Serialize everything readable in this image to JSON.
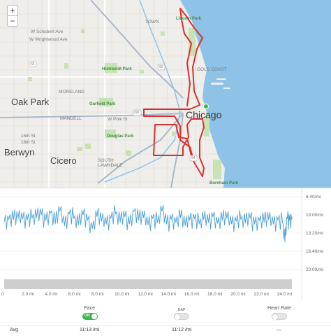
{
  "map": {
    "zoom_in": "+",
    "zoom_out": "−",
    "labels": {
      "oak_park": "Oak Park",
      "berwyn": "Berwyn",
      "cicero": "Cicero",
      "chicago": "Chicago",
      "lincoln_park": "Lincoln Park",
      "humboldt_park": "Humboldt Park",
      "garfield_park": "Garfield Park",
      "douglas_park": "Douglas Park",
      "burnham_park": "Burnham Park",
      "w_schubert": "W Schubert Ave",
      "w_wrightwood": "W Wrightwood Ave",
      "w_polk": "W Polk St",
      "st15": "15th St",
      "st18": "18th St",
      "moreland": "MORELAND",
      "mandell": "MANDELL",
      "south_lawndale": "SOUTH\nLAWNDALE",
      "gold_coast": "GOLD COAST",
      "town": "TOWN",
      "hwy_64": "64",
      "hwy_90": "90",
      "hwy_290": "290",
      "hwy_94": "94"
    },
    "colors": {
      "water": "#8ec2e6",
      "route": "#d9302f",
      "park": "#c7e3b4",
      "land": "#efeeeb"
    }
  },
  "chart_data": {
    "type": "line",
    "title": "",
    "xlabel": "",
    "ylabel": "",
    "x_unit": "mi",
    "xlim": [
      0,
      24.8
    ],
    "ylim_seconds_per_mile": [
      400,
      1400
    ],
    "x_ticks": [
      "0",
      "2.0 mi",
      "4.0 mi",
      "6.0 mi",
      "8.0 mi",
      "10.0 mi",
      "12.0 mi",
      "14.0 mi",
      "16.0 mi",
      "18.0 mi",
      "20.0 mi",
      "22.0 mi",
      "24.0 mi"
    ],
    "y_ticks": [
      "6:40/mi",
      "10:00/mi",
      "13:20/mi",
      "16:40/mi",
      "20:00/mi"
    ],
    "series": [
      {
        "color": "#4a9fd8",
        "x": [
          0,
          0.4,
          0.8,
          1.2,
          1.6,
          2.0,
          2.4,
          2.8,
          3.2,
          3.6,
          4.0,
          4.4,
          4.8,
          5.2,
          5.6,
          6.0,
          6.4,
          6.8,
          7.2,
          7.6,
          8.0,
          8.4,
          8.8,
          9.2,
          9.6,
          10.0,
          10.4,
          10.8,
          11.2,
          11.6,
          12.0,
          12.4,
          12.8,
          13.2,
          13.6,
          14.0,
          14.4,
          14.8,
          15.2,
          15.6,
          16.0,
          16.4,
          16.8,
          17.2,
          17.6,
          18.0,
          18.4,
          18.8,
          19.2,
          19.6,
          20.0,
          20.4,
          20.8,
          21.2,
          21.6,
          22.0,
          22.4,
          22.8,
          23.2,
          23.6,
          24.0,
          24.2,
          24.4,
          24.6,
          24.8
        ],
        "pace_seconds_per_mile": [
          680,
          650,
          655,
          640,
          645,
          650,
          640,
          630,
          600,
          660,
          580,
          700,
          560,
          720,
          590,
          640,
          710,
          600,
          660,
          750,
          620,
          670,
          700,
          640,
          590,
          680,
          620,
          700,
          560,
          660,
          630,
          710,
          640,
          690,
          560,
          700,
          650,
          680,
          630,
          720,
          660,
          640,
          700,
          650,
          680,
          620,
          690,
          660,
          640,
          700,
          670,
          650,
          690,
          640,
          700,
          660,
          680,
          650,
          700,
          660,
          690,
          900,
          640,
          660,
          650
        ]
      }
    ],
    "elevation_fill": "#bdbdbd"
  },
  "controls": {
    "pace": {
      "label": "Pace",
      "state": "on",
      "state_text": "ON"
    },
    "gap": {
      "label": "GAP",
      "state": "off"
    },
    "heart_rate": {
      "label": "Heart Rate",
      "state": "off"
    }
  },
  "summary": {
    "avg_label": "Avg",
    "pace_value": "11:13 /mi",
    "gap_value": "11:12 /mi",
    "hr_value": "—"
  }
}
